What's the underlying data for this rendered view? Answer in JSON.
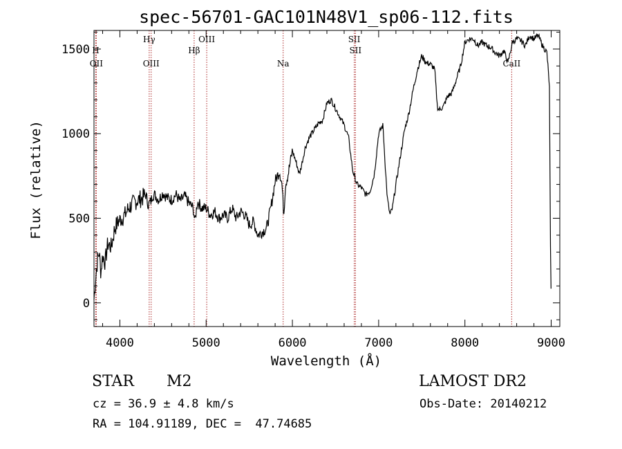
{
  "chart_data": {
    "type": "line",
    "title": "spec-56701-GAC101N48V1_sp06-112.fits",
    "xlabel": "Wavelength (Å)",
    "ylabel": "Flux (relative)",
    "xlim": [
      3700,
      9100
    ],
    "ylim": [
      -140,
      1610
    ],
    "x_ticks": [
      4000,
      5000,
      6000,
      7000,
      8000,
      9000
    ],
    "y_ticks": [
      0,
      500,
      1000,
      1500
    ],
    "grid": false,
    "line_color": "#000000",
    "marker_color": "#aa2222",
    "spectrum": {
      "x": [
        3700,
        3720,
        3740,
        3760,
        3780,
        3800,
        3830,
        3860,
        3900,
        3940,
        3980,
        4020,
        4060,
        4100,
        4140,
        4180,
        4220,
        4260,
        4300,
        4330,
        4360,
        4380,
        4400,
        4450,
        4500,
        4550,
        4600,
        4650,
        4700,
        4750,
        4800,
        4850,
        4870,
        4900,
        4950,
        5000,
        5050,
        5100,
        5150,
        5200,
        5250,
        5300,
        5350,
        5400,
        5450,
        5500,
        5550,
        5600,
        5650,
        5700,
        5750,
        5800,
        5850,
        5880,
        5900,
        5920,
        5950,
        6000,
        6050,
        6080,
        6100,
        6150,
        6200,
        6250,
        6300,
        6350,
        6400,
        6450,
        6500,
        6550,
        6600,
        6650,
        6700,
        6750,
        6800,
        6850,
        6900,
        6950,
        7000,
        7050,
        7080,
        7100,
        7130,
        7160,
        7200,
        7250,
        7300,
        7350,
        7400,
        7450,
        7500,
        7550,
        7600,
        7620,
        7650,
        7680,
        7700,
        7750,
        7800,
        7850,
        7900,
        7950,
        8000,
        8050,
        8100,
        8150,
        8200,
        8250,
        8300,
        8350,
        8400,
        8450,
        8500,
        8550,
        8600,
        8650,
        8700,
        8750,
        8800,
        8850,
        8900,
        8950,
        8980,
        8990,
        9000
      ],
      "y": [
        20,
        150,
        250,
        300,
        180,
        280,
        240,
        350,
        330,
        440,
        480,
        500,
        520,
        560,
        580,
        600,
        610,
        620,
        640,
        580,
        600,
        640,
        640,
        610,
        650,
        620,
        610,
        640,
        600,
        630,
        590,
        560,
        480,
        600,
        560,
        560,
        520,
        540,
        500,
        520,
        500,
        560,
        500,
        540,
        520,
        460,
        480,
        400,
        420,
        440,
        560,
        720,
        780,
        700,
        520,
        700,
        760,
        900,
        820,
        760,
        800,
        920,
        980,
        1020,
        1060,
        1080,
        1180,
        1200,
        1150,
        1100,
        1050,
        980,
        780,
        700,
        680,
        640,
        660,
        760,
        1000,
        1050,
        780,
        620,
        520,
        560,
        700,
        860,
        1020,
        1120,
        1260,
        1380,
        1460,
        1420,
        1410,
        1400,
        1380,
        1160,
        1140,
        1160,
        1220,
        1240,
        1320,
        1400,
        1540,
        1560,
        1560,
        1520,
        1540,
        1520,
        1510,
        1480,
        1460,
        1490,
        1420,
        1540,
        1560,
        1550,
        1520,
        1580,
        1560,
        1580,
        1520,
        1480,
        1280,
        420,
        0
      ]
    },
    "lines": [
      {
        "label": "H",
        "x": 3720,
        "row": 2
      },
      {
        "label": "OII",
        "x": 3727,
        "row": 3
      },
      {
        "label": "Hγ",
        "x": 4340,
        "row": 1
      },
      {
        "label": "OIII",
        "x": 4363,
        "row": 3
      },
      {
        "label": "Hβ",
        "x": 4861,
        "row": 2
      },
      {
        "label": "OIII",
        "x": 5007,
        "row": 1
      },
      {
        "label": "Na",
        "x": 5893,
        "row": 3
      },
      {
        "label": "SII",
        "x": 6717,
        "row": 1
      },
      {
        "label": "SII",
        "x": 6731,
        "row": 2
      },
      {
        "label": "CaII",
        "x": 8542,
        "row": 3
      }
    ]
  },
  "info": {
    "object_class": "STAR",
    "subclass": "M2",
    "redshift": "cz = 36.9 ± 4.8 km/s",
    "coords": "RA = 104.91189, DEC =  47.74685",
    "survey": "LAMOST DR2",
    "obs_date": "Obs-Date: 20140212"
  }
}
